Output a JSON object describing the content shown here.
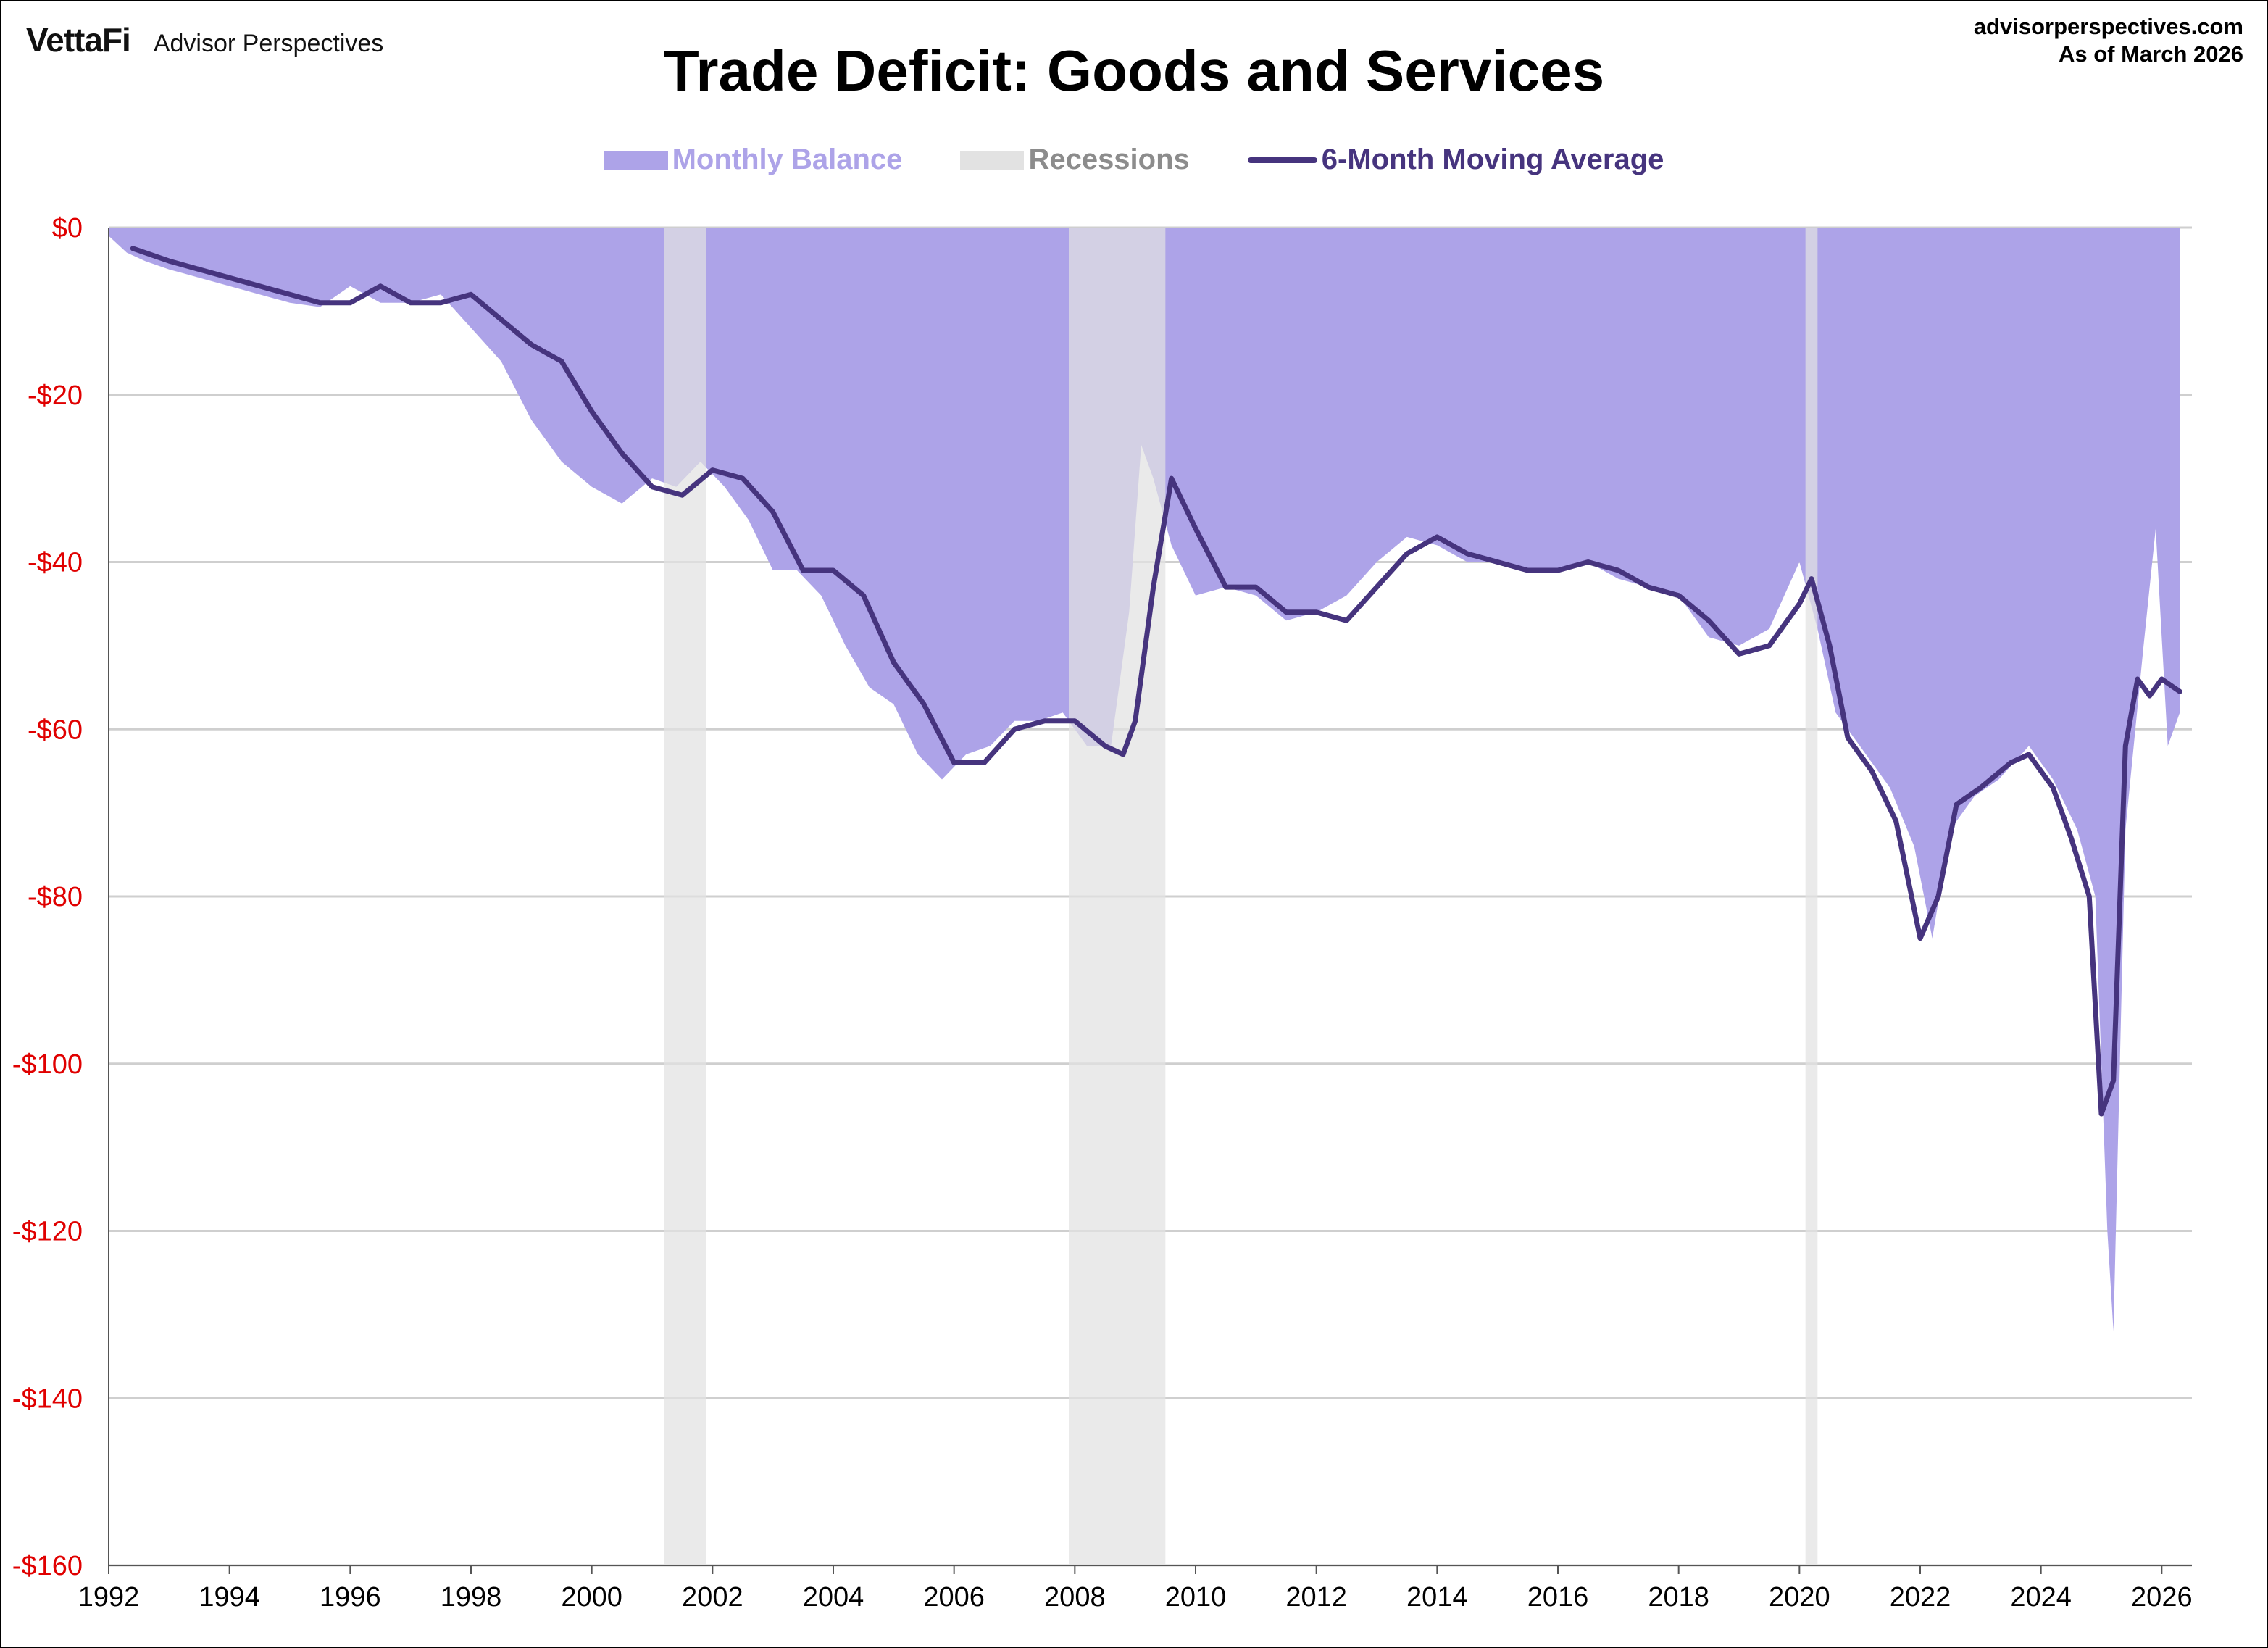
{
  "header": {
    "logo": "VettaFi",
    "brand": "Advisor Perspectives",
    "site": "advisorperspectives.com",
    "as_of": "As of March 2026"
  },
  "colors": {
    "monthly_fill": "#ada3e8",
    "recession": "#e2e2e2",
    "moving_avg": "#46347e",
    "axis_label": "#e00000",
    "grid": "#cfcfcf",
    "legend_monthly": "#ada3e8",
    "legend_recession": "#8c8c8c"
  },
  "chart_data": {
    "type": "area",
    "title": "Trade Deficit: Goods and Services",
    "xlabel": "",
    "ylabel": "",
    "xlim": [
      1992.0,
      2026.5
    ],
    "ylim": [
      -160,
      0
    ],
    "grid": true,
    "legend_position": "top-center",
    "legend": [
      "Monthly Balance",
      "Recessions",
      "6-Month Moving Average"
    ],
    "y_ticks": [
      0,
      -20,
      -40,
      -60,
      -80,
      -100,
      -120,
      -140,
      -160
    ],
    "y_tick_labels": [
      "$0",
      "-$20",
      "-$40",
      "-$60",
      "-$80",
      "-$100",
      "-$120",
      "-$140",
      "-$160"
    ],
    "x_ticks": [
      1992,
      1994,
      1996,
      1998,
      2000,
      2002,
      2004,
      2006,
      2008,
      2010,
      2012,
      2014,
      2016,
      2018,
      2020,
      2022,
      2024,
      2026
    ],
    "x_tick_labels": [
      "1992",
      "1994",
      "1996",
      "1998",
      "2000",
      "2002",
      "2004",
      "2006",
      "2008",
      "2010",
      "2012",
      "2014",
      "2016",
      "2018",
      "2020",
      "2022",
      "2024",
      "2026"
    ],
    "recessions": [
      [
        2001.2,
        2001.9
      ],
      [
        2007.9,
        2009.5
      ],
      [
        2020.1,
        2020.3
      ]
    ],
    "series": [
      {
        "name": "Monthly Balance",
        "x": [
          1992.0,
          1992.3,
          1992.6,
          1993.0,
          1993.5,
          1994.0,
          1994.5,
          1995.0,
          1995.5,
          1996.0,
          1996.5,
          1997.0,
          1997.5,
          1998.0,
          1998.5,
          1999.0,
          1999.5,
          2000.0,
          2000.5,
          2001.0,
          2001.4,
          2001.8,
          2002.2,
          2002.6,
          2003.0,
          2003.4,
          2003.8,
          2004.2,
          2004.6,
          2005.0,
          2005.4,
          2005.8,
          2006.2,
          2006.6,
          2007.0,
          2007.4,
          2007.8,
          2008.2,
          2008.6,
          2008.9,
          2009.1,
          2009.3,
          2009.6,
          2010.0,
          2010.5,
          2011.0,
          2011.5,
          2012.0,
          2012.5,
          2013.0,
          2013.5,
          2014.0,
          2014.5,
          2015.0,
          2015.5,
          2016.0,
          2016.5,
          2017.0,
          2017.5,
          2018.0,
          2018.5,
          2019.0,
          2019.5,
          2020.0,
          2020.3,
          2020.6,
          2021.0,
          2021.5,
          2021.9,
          2022.2,
          2022.5,
          2022.9,
          2023.3,
          2023.8,
          2024.2,
          2024.6,
          2024.9,
          2025.1,
          2025.2,
          2025.4,
          2025.7,
          2025.9,
          2026.1,
          2026.3
        ],
        "values": [
          -1,
          -3,
          -4,
          -5,
          -6,
          -7,
          -8,
          -9,
          -9.5,
          -7,
          -9,
          -9,
          -8,
          -12,
          -16,
          -23,
          -28,
          -31,
          -33,
          -30,
          -31,
          -28,
          -31,
          -35,
          -41,
          -41,
          -44,
          -50,
          -55,
          -57,
          -63,
          -66,
          -63,
          -62,
          -59,
          -59,
          -58,
          -62,
          -62,
          -46,
          -26,
          -30,
          -38,
          -44,
          -43,
          -44,
          -47,
          -46,
          -44,
          -40,
          -37,
          -38,
          -40,
          -40,
          -41,
          -41,
          -40,
          -42,
          -43,
          -44,
          -49,
          -50,
          -48,
          -40,
          -48,
          -58,
          -62,
          -67,
          -74,
          -85,
          -72,
          -68,
          -66,
          -62,
          -66,
          -72,
          -80,
          -120,
          -132,
          -72,
          -50,
          -36,
          -62,
          -58
        ]
      },
      {
        "name": "6-Month Moving Average",
        "x": [
          1992.4,
          1993.0,
          1993.5,
          1994.0,
          1994.5,
          1995.0,
          1995.5,
          1996.0,
          1996.5,
          1997.0,
          1997.5,
          1998.0,
          1998.5,
          1999.0,
          1999.5,
          2000.0,
          2000.5,
          2001.0,
          2001.5,
          2002.0,
          2002.5,
          2003.0,
          2003.5,
          2004.0,
          2004.5,
          2005.0,
          2005.5,
          2006.0,
          2006.5,
          2007.0,
          2007.5,
          2008.0,
          2008.5,
          2008.8,
          2009.0,
          2009.3,
          2009.6,
          2010.0,
          2010.5,
          2011.0,
          2011.5,
          2012.0,
          2012.5,
          2013.0,
          2013.5,
          2014.0,
          2014.5,
          2015.0,
          2015.5,
          2016.0,
          2016.5,
          2017.0,
          2017.5,
          2018.0,
          2018.5,
          2019.0,
          2019.5,
          2020.0,
          2020.2,
          2020.5,
          2020.8,
          2021.2,
          2021.6,
          2022.0,
          2022.3,
          2022.6,
          2023.0,
          2023.5,
          2023.8,
          2024.2,
          2024.5,
          2024.8,
          2025.0,
          2025.2,
          2025.4,
          2025.6,
          2025.8,
          2026.0,
          2026.3
        ],
        "values": [
          -2.5,
          -4,
          -5,
          -6,
          -7,
          -8,
          -9,
          -9,
          -7,
          -9,
          -9,
          -8,
          -11,
          -14,
          -16,
          -22,
          -27,
          -31,
          -32,
          -29,
          -30,
          -34,
          -41,
          -41,
          -44,
          -52,
          -57,
          -64,
          -64,
          -60,
          -59,
          -59,
          -62,
          -63,
          -59,
          -43,
          -30,
          -36,
          -43,
          -43,
          -46,
          -46,
          -47,
          -43,
          -39,
          -37,
          -39,
          -40,
          -41,
          -41,
          -40,
          -41,
          -43,
          -44,
          -47,
          -51,
          -50,
          -45,
          -42,
          -50,
          -61,
          -65,
          -71,
          -85,
          -80,
          -69,
          -67,
          -64,
          -63,
          -67,
          -73,
          -80,
          -106,
          -102,
          -62,
          -54,
          -56,
          -54,
          -55.5
        ]
      }
    ]
  }
}
